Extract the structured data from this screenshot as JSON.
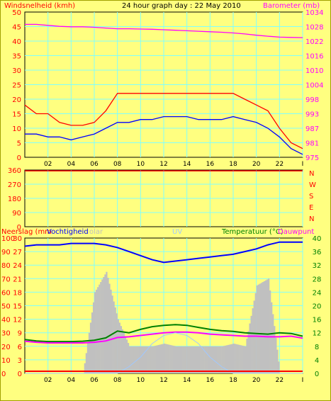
{
  "chart_data": [
    {
      "id": "wind_baro",
      "type": "line",
      "title": "24 hour graph day : 22 May 2010",
      "left_axis_label": "Windsnelheid (kmh)",
      "right_axis_label": "Barometer (mb)",
      "ylim_left": [
        0,
        50
      ],
      "ylim_right": [
        975,
        1034
      ],
      "yticks_left": [
        "0",
        "5",
        "10",
        "15",
        "20",
        "25",
        "30",
        "35",
        "40",
        "45",
        "50"
      ],
      "yticks_right": [
        "975",
        "981",
        "987",
        "993",
        "998",
        "1004",
        "1010",
        "1016",
        "1022",
        "1028",
        "1034"
      ],
      "xticks": [
        "02",
        "04",
        "06",
        "08",
        "10",
        "12",
        "14",
        "16",
        "18",
        "20",
        "22",
        "I"
      ],
      "x_hours": [
        0,
        1,
        2,
        3,
        4,
        5,
        6,
        7,
        8,
        9,
        10,
        11,
        12,
        13,
        14,
        15,
        16,
        17,
        18,
        19,
        20,
        21,
        22,
        23,
        24
      ],
      "series": [
        {
          "name": "Windsnelheid",
          "color": "#ff0000",
          "values": [
            18,
            15,
            15,
            12,
            11,
            11,
            12,
            16,
            22,
            22,
            22,
            22,
            22,
            22,
            22,
            22,
            22,
            22,
            22,
            20,
            18,
            16,
            10,
            5,
            3
          ]
        },
        {
          "name": "Barometer",
          "color": "#ff00ff",
          "axis": "right",
          "values": [
            1029,
            1029,
            1028.6,
            1028.2,
            1028,
            1028,
            1027.8,
            1027.5,
            1027.2,
            1027.2,
            1027.1,
            1027,
            1026.8,
            1026.6,
            1026.4,
            1026.2,
            1026,
            1025.8,
            1025.5,
            1025.1,
            1024.6,
            1024.2,
            1023.8,
            1023.7,
            1023.6
          ]
        },
        {
          "name": "wind (blue)",
          "color": "#0000ff",
          "values": [
            8,
            8,
            7,
            7,
            6,
            7,
            8,
            10,
            12,
            12,
            13,
            13,
            14,
            14,
            14,
            13,
            13,
            13,
            14,
            13,
            12,
            10,
            7,
            3,
            1
          ]
        }
      ],
      "grid": true
    },
    {
      "id": "winddir",
      "type": "line",
      "yticks": [
        "0",
        "90",
        "180",
        "270",
        "360"
      ],
      "ylim": [
        0,
        360
      ],
      "right_labels": [
        "N",
        "W",
        "S",
        "E",
        "N"
      ],
      "series": [
        {
          "color": "#ff0000",
          "values": [
            355,
            355,
            355,
            355,
            355,
            355,
            355,
            355,
            355,
            355,
            355,
            355,
            355,
            355,
            355,
            355,
            355,
            355,
            355,
            355,
            355,
            355,
            355,
            355,
            355
          ]
        }
      ],
      "grid": true
    },
    {
      "id": "rain_hum_temp",
      "type": "line",
      "labels": {
        "rain": "Neerslag (mm",
        "humidity": "Vochtigheid",
        "solar": "olar",
        "uv": "UV",
        "temp": "Temperatuur (°C)",
        "dew": "Dauwpunt"
      },
      "yticks_humidity": [
        "0",
        "10",
        "20",
        "30",
        "40",
        "50",
        "60",
        "70",
        "80",
        "90",
        "100"
      ],
      "yticks_rain": [
        "0",
        "3",
        "6",
        "9",
        "12",
        "15",
        "18",
        "21",
        "24",
        "27",
        "30"
      ],
      "yticks_temp": [
        "0",
        "4",
        "8",
        "12",
        "16",
        "20",
        "24",
        "28",
        "32",
        "36",
        "40"
      ],
      "ylim_humidity": [
        0,
        100
      ],
      "ylim_temp": [
        0,
        40
      ],
      "series": [
        {
          "name": "Vochtigheid",
          "color": "#0000ff",
          "axis": "humidity",
          "values": [
            94,
            95,
            95,
            95,
            96,
            96,
            96,
            95,
            93,
            90,
            87,
            84,
            82,
            83,
            84,
            85,
            86,
            87,
            88,
            90,
            92,
            95,
            97,
            97,
            97
          ]
        },
        {
          "name": "Temperatuur",
          "color": "#008000",
          "axis": "temp",
          "values": [
            10,
            9.6,
            9.4,
            9.4,
            9.4,
            9.5,
            9.8,
            10.5,
            12.5,
            12,
            13,
            13.8,
            14.2,
            14.4,
            14.2,
            13.6,
            13.0,
            12.6,
            12.4,
            12.0,
            11.8,
            11.6,
            12.0,
            11.8,
            11.0
          ]
        },
        {
          "name": "Dauwpunt",
          "color": "#ff00ff",
          "axis": "temp",
          "values": [
            9.5,
            9.2,
            9.0,
            9.0,
            9.0,
            9.0,
            9.2,
            9.6,
            10.6,
            10.8,
            11.2,
            11.6,
            12.0,
            12.2,
            12.2,
            12.0,
            11.6,
            11.4,
            11.2,
            11.0,
            11.0,
            10.8,
            10.8,
            11.0,
            10.4
          ]
        },
        {
          "name": "Solar",
          "color": "#c0c0c0",
          "axis": "humidity",
          "values": [
            0,
            0,
            0,
            0,
            0,
            0,
            60,
            75,
            40,
            20,
            20,
            20,
            22,
            20,
            20,
            20,
            20,
            20,
            22,
            20,
            65,
            70,
            0,
            0,
            0
          ]
        },
        {
          "name": "UV",
          "color": "#a0c8ff",
          "axis": "humidity",
          "values": [
            0,
            0,
            0,
            0,
            0,
            0,
            0,
            0,
            0,
            5,
            12,
            22,
            28,
            30,
            28,
            22,
            12,
            5,
            0,
            0,
            0,
            0,
            0,
            0,
            0
          ]
        }
      ],
      "xticks": [
        "02",
        "04",
        "06",
        "08",
        "10",
        "12",
        "14",
        "16",
        "18",
        "20",
        "22",
        "I"
      ],
      "grid": true
    }
  ]
}
